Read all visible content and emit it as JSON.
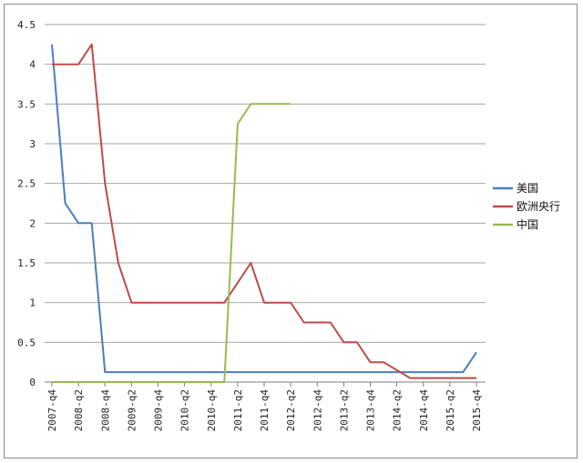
{
  "chart_data": {
    "type": "line",
    "title": "",
    "xlabel": "",
    "ylabel": "",
    "ylim": [
      0,
      4.5
    ],
    "yticks": [
      "0",
      "0.5",
      "1",
      "1.5",
      "2",
      "2.5",
      "3",
      "3.5",
      "4",
      "4.5"
    ],
    "grid": true,
    "legend_position": "right",
    "x_tick_labels": [
      "2007-q4",
      "2008-q2",
      "2008-q4",
      "2009-q2",
      "2009-q4",
      "2010-q2",
      "2010-q4",
      "2011-q2",
      "2011-q4",
      "2012-q2",
      "2012-q4",
      "2013-q2",
      "2013-q4",
      "2014-q2",
      "2014-q4",
      "2015-q2",
      "2015-q4"
    ],
    "x": [
      "2007-q4",
      "2008-q1",
      "2008-q2",
      "2008-q3",
      "2008-q4",
      "2009-q1",
      "2009-q2",
      "2009-q3",
      "2009-q4",
      "2010-q1",
      "2010-q2",
      "2010-q3",
      "2010-q4",
      "2011-q1",
      "2011-q2",
      "2011-q3",
      "2011-q4",
      "2012-q1",
      "2012-q2",
      "2012-q3",
      "2012-q4",
      "2013-q1",
      "2013-q2",
      "2013-q3",
      "2013-q4",
      "2014-q1",
      "2014-q2",
      "2014-q3",
      "2014-q4",
      "2015-q1",
      "2015-q2",
      "2015-q3",
      "2015-q4"
    ],
    "series": [
      {
        "name": "美国",
        "color": "#4a7ebb",
        "values": [
          4.25,
          2.25,
          2.0,
          2.0,
          0.125,
          0.125,
          0.125,
          0.125,
          0.125,
          0.125,
          0.125,
          0.125,
          0.125,
          0.125,
          0.125,
          0.125,
          0.125,
          0.125,
          0.125,
          0.125,
          0.125,
          0.125,
          0.125,
          0.125,
          0.125,
          0.125,
          0.125,
          0.125,
          0.125,
          0.125,
          0.125,
          0.125,
          0.375
        ]
      },
      {
        "name": "欧洲央行",
        "color": "#be4b48",
        "values": [
          4.0,
          4.0,
          4.0,
          4.25,
          2.5,
          1.5,
          1.0,
          1.0,
          1.0,
          1.0,
          1.0,
          1.0,
          1.0,
          1.0,
          1.25,
          1.5,
          1.0,
          1.0,
          1.0,
          0.75,
          0.75,
          0.75,
          0.5,
          0.5,
          0.25,
          0.25,
          0.15,
          0.05,
          0.05,
          0.05,
          0.05,
          0.05,
          0.05
        ]
      },
      {
        "name": "中国",
        "color": "#98b954",
        "values": [
          0,
          0,
          0,
          0,
          0,
          0,
          0,
          0,
          0,
          0,
          0,
          0,
          0,
          0,
          3.25,
          3.5,
          3.5,
          3.5,
          3.5,
          null,
          null,
          null,
          null,
          null,
          null,
          null,
          null,
          null,
          null,
          null,
          null,
          null,
          null
        ]
      }
    ]
  }
}
